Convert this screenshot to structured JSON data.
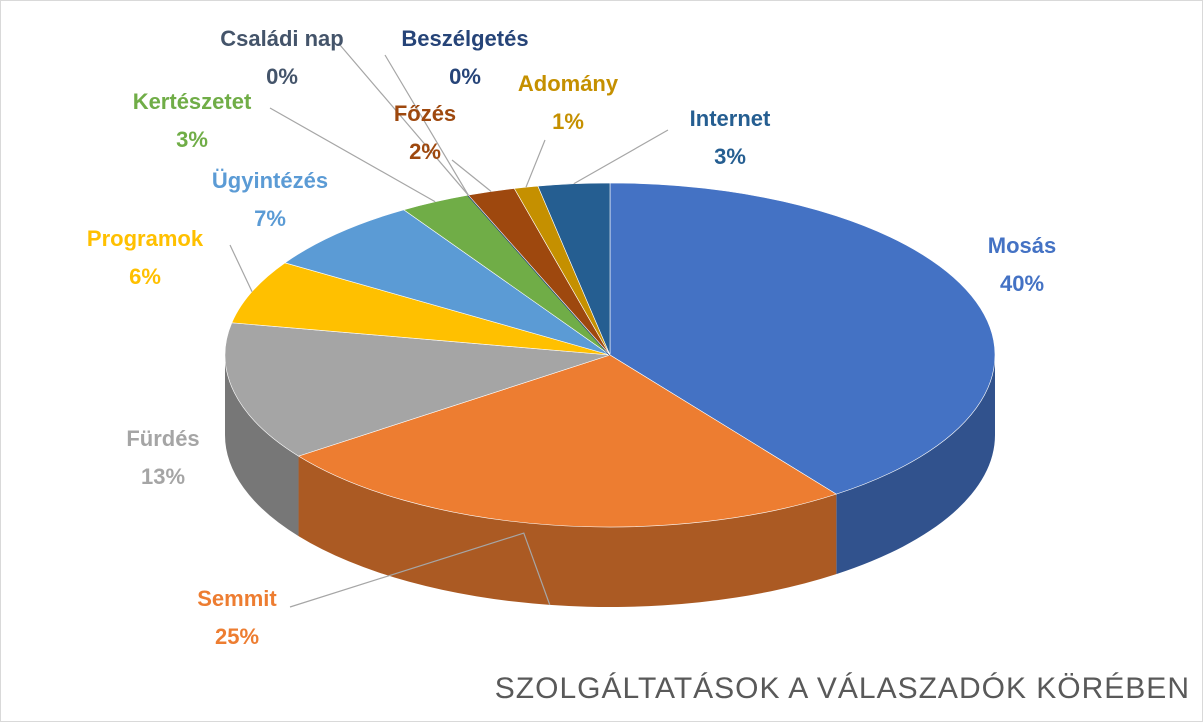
{
  "chart_data": {
    "type": "pie3d",
    "title": "SZOLGÁLTATÁSOK A VÁLASZADÓK KÖRÉBEN",
    "categories": [
      "Mosás",
      "Semmit",
      "Fürdés",
      "Programok",
      "Ügyintézés",
      "Kertészetet",
      "Családi nap",
      "Beszélgetés",
      "Főzés",
      "Adomány",
      "Internet"
    ],
    "values": [
      40,
      25,
      13,
      6,
      7,
      3,
      0,
      0,
      2,
      1,
      3
    ],
    "value_labels": [
      "40%",
      "25%",
      "13%",
      "6%",
      "7%",
      "3%",
      "0%",
      "0%",
      "2%",
      "1%",
      "3%"
    ],
    "colors": [
      "#4472c4",
      "#ed7d31",
      "#a5a5a5",
      "#ffc000",
      "#5b9bd5",
      "#70ad47",
      "#44546a",
      "#264478",
      "#9e480e",
      "#c59000",
      "#255e91"
    ]
  }
}
